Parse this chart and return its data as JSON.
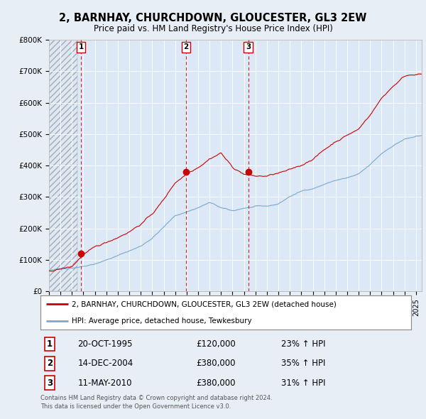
{
  "title": "2, BARNHAY, CHURCHDOWN, GLOUCESTER, GL3 2EW",
  "subtitle": "Price paid vs. HM Land Registry's House Price Index (HPI)",
  "legend_line1": "2, BARNHAY, CHURCHDOWN, GLOUCESTER, GL3 2EW (detached house)",
  "legend_line2": "HPI: Average price, detached house, Tewkesbury",
  "footer1": "Contains HM Land Registry data © Crown copyright and database right 2024.",
  "footer2": "This data is licensed under the Open Government Licence v3.0.",
  "sale_color": "#cc0000",
  "hpi_color": "#77aacc",
  "vline_color": "#cc0000",
  "background_color": "#e8eef5",
  "plot_bg_color": "#dce8f5",
  "grid_color": "#ffffff",
  "ylim": [
    0,
    800000
  ],
  "xlim_start": 1993.0,
  "xlim_end": 2025.5,
  "sales": [
    {
      "label": "1",
      "year": 1995.79,
      "price": 120000
    },
    {
      "label": "2",
      "year": 2004.95,
      "price": 380000
    },
    {
      "label": "3",
      "year": 2010.37,
      "price": 380000
    }
  ],
  "table_rows": [
    {
      "num": "1",
      "date": "20-OCT-1995",
      "price": "£120,000",
      "pct": "23% ↑ HPI"
    },
    {
      "num": "2",
      "date": "14-DEC-2004",
      "price": "£380,000",
      "pct": "35% ↑ HPI"
    },
    {
      "num": "3",
      "date": "11-MAY-2010",
      "price": "£380,000",
      "pct": "31% ↑ HPI"
    }
  ]
}
